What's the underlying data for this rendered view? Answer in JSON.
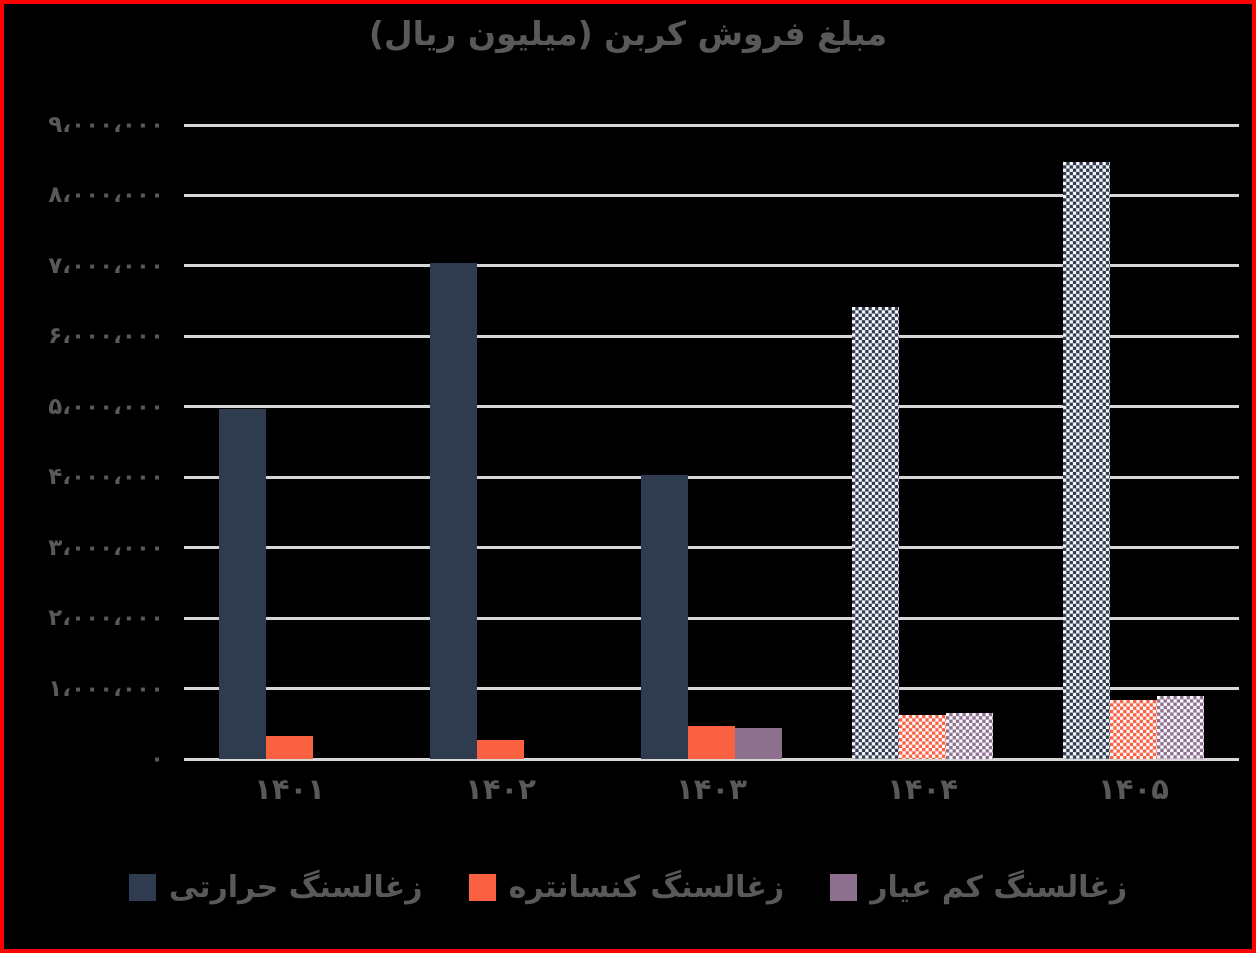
{
  "frame": {
    "background": "#000000",
    "border_color": "#ff0000",
    "text_color": "#595959",
    "gridline_color": "#d6d6d6",
    "hatch_background": "#f8f7fb"
  },
  "title": "مبلغ فروش کربن (میلیون ریال)",
  "chart_data": {
    "type": "bar",
    "title": "مبلغ فروش کربن (میلیون ریال)",
    "direction": "rtl",
    "categories": [
      "۱۴۰۱",
      "۱۴۰۲",
      "۱۴۰۳",
      "۱۴۰۴",
      "۱۴۰۵"
    ],
    "series": [
      {
        "name": "زغالسنگ حرارتی",
        "color": "#2f3c50",
        "values": [
          4970000,
          7040000,
          4030000,
          6420000,
          8470000
        ]
      },
      {
        "name": "زغالسنگ کنسانتره",
        "color": "#fa6140",
        "values": [
          330000,
          270000,
          470000,
          620000,
          840000
        ]
      },
      {
        "name": "زغالسنگ کم عیار",
        "color": "#8c708d",
        "values": [
          0,
          0,
          440000,
          660000,
          890000
        ]
      }
    ],
    "hatched_category_indices": [
      3,
      4
    ],
    "hatch_style": "checkerboard",
    "ylim": [
      0,
      9000000
    ],
    "ytick_step": 1000000,
    "ytick_labels": [
      "۰",
      "۱،۰۰۰،۰۰۰",
      "۲،۰۰۰،۰۰۰",
      "۳،۰۰۰،۰۰۰",
      "۴،۰۰۰،۰۰۰",
      "۵،۰۰۰،۰۰۰",
      "۶،۰۰۰،۰۰۰",
      "۷،۰۰۰،۰۰۰",
      "۸،۰۰۰،۰۰۰",
      "۹،۰۰۰،۰۰۰"
    ],
    "grid": "horizontal",
    "legend_position": "bottom",
    "legend": [
      "زغالسنگ حرارتی",
      "زغالسنگ کنسانتره",
      "زغالسنگ کم عیار"
    ]
  }
}
